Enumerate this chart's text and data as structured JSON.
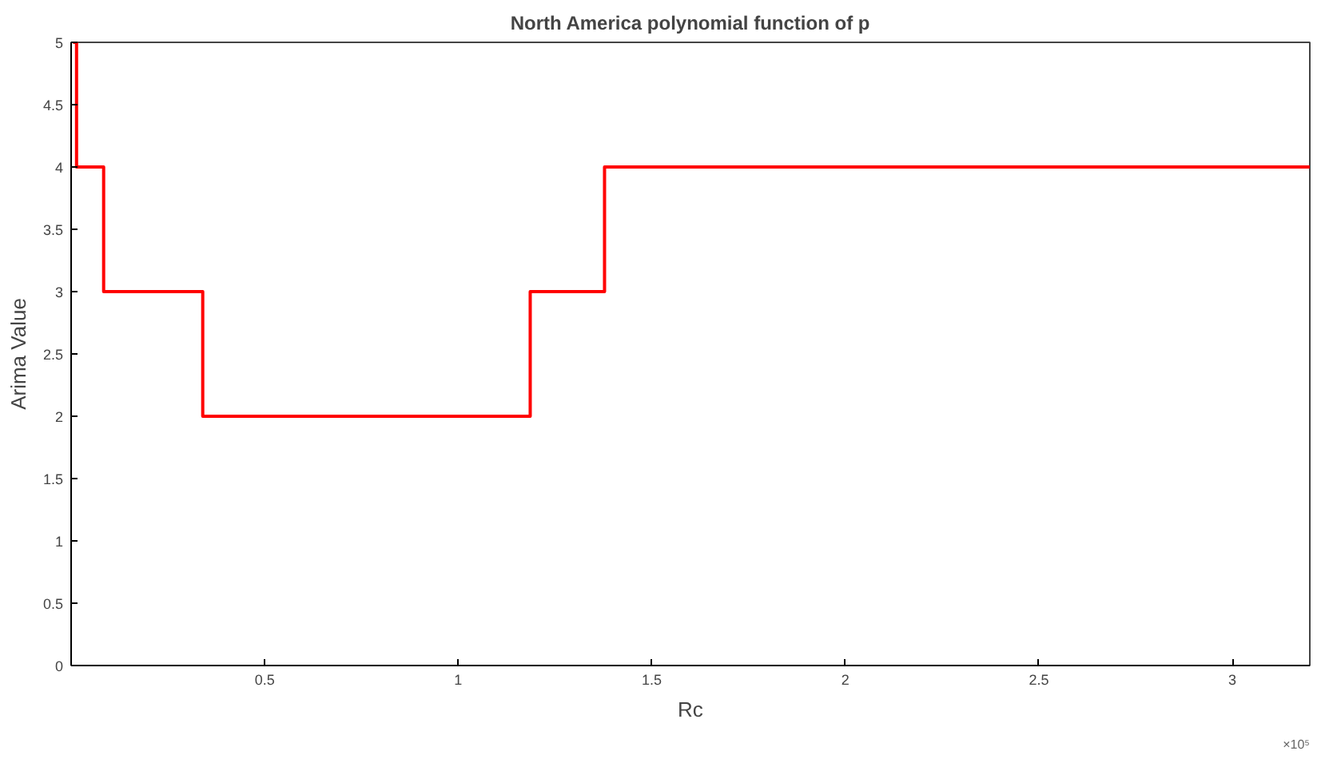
{
  "chart_data": {
    "type": "step",
    "title": "North America polynomial function of p",
    "xlabel": "Rc",
    "ylabel": "Arima Value",
    "annotations": [
      "×10⁵"
    ],
    "x": [
      0.005,
      0.014,
      0.084,
      0.34,
      1.186,
      1.378,
      3.2
    ],
    "series": [
      {
        "color": "#ff0000",
        "values": [
          5,
          4,
          3,
          2,
          3,
          4,
          4
        ]
      }
    ],
    "xlim": [
      0,
      3.2
    ],
    "xticks": [
      0.5,
      1,
      1.5,
      2,
      2.5,
      3
    ],
    "ylim": [
      0,
      5
    ],
    "yticks": [
      0,
      0.5,
      1,
      1.5,
      2,
      2.5,
      3,
      3.5,
      4,
      4.5,
      5
    ],
    "grid": false
  }
}
